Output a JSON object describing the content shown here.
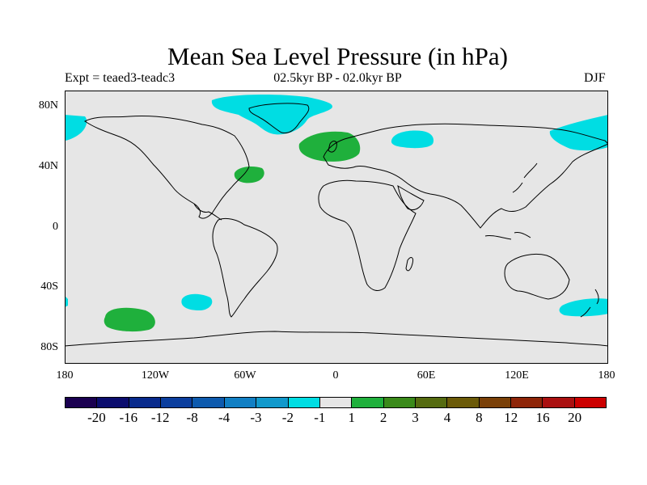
{
  "title": "Mean Sea Level Pressure (in hPa)",
  "subtitle_left": "Expt = teaed3-teadc3",
  "subtitle_center": "02.5kyr BP - 02.0kyr BP",
  "subtitle_right": "DJF",
  "y_ticks": [
    "80N",
    "40N",
    "0",
    "40S",
    "80S"
  ],
  "x_ticks": [
    "180",
    "120W",
    "60W",
    "0",
    "60E",
    "120E",
    "180"
  ],
  "colorbar": {
    "colors": [
      "#1a0050",
      "#0b0d6e",
      "#082a8c",
      "#0b3e9e",
      "#0d5aae",
      "#117fc4",
      "#1199cc",
      "#00dde3",
      "#e6e6e6",
      "#1fb03c",
      "#3a8a1a",
      "#556b10",
      "#6b5a08",
      "#7a4008",
      "#8e2508",
      "#aa1010",
      "#cc0000"
    ],
    "labels": [
      "-20",
      "-16",
      "-12",
      "-8",
      "-4",
      "-3",
      "-2",
      "-1",
      "1",
      "2",
      "3",
      "4",
      "8",
      "12",
      "16",
      "20"
    ]
  },
  "colors": {
    "ocean_land_fill": "#e6e6e6",
    "negative_anomaly": "#00dde3",
    "positive_anomaly": "#1fb03c"
  }
}
